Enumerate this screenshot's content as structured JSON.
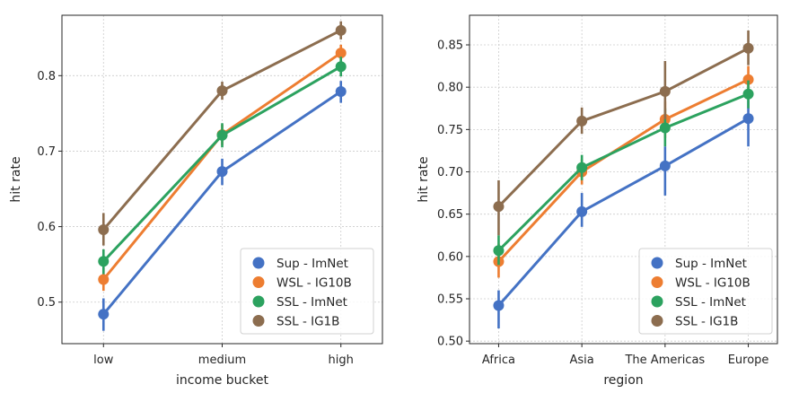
{
  "chart_data": [
    {
      "type": "line",
      "xlabel": "income bucket",
      "ylabel": "hit rate",
      "categories": [
        "low",
        "medium",
        "high"
      ],
      "ylim": [
        0.445,
        0.88
      ],
      "yticks": [
        0.5,
        0.6,
        0.7,
        0.8
      ],
      "ytick_labels": [
        "0.5",
        "0.6",
        "0.7",
        "0.8"
      ],
      "grid": true,
      "legend_loc": "bottom-right",
      "series": [
        {
          "name": "Sup - ImNet",
          "color": "#4472c4",
          "values": [
            0.484,
            0.673,
            0.779
          ],
          "err_low": [
            0.462,
            0.655,
            0.764
          ],
          "err_high": [
            0.505,
            0.69,
            0.793
          ]
        },
        {
          "name": "WSL - IG10B",
          "color": "#ed7d31",
          "values": [
            0.53,
            0.722,
            0.83
          ],
          "err_low": [
            0.515,
            0.708,
            0.819
          ],
          "err_high": [
            0.545,
            0.735,
            0.841
          ]
        },
        {
          "name": "SSL - ImNet",
          "color": "#2ca25f",
          "values": [
            0.554,
            0.721,
            0.812
          ],
          "err_low": [
            0.537,
            0.705,
            0.799
          ],
          "err_high": [
            0.57,
            0.737,
            0.825
          ]
        },
        {
          "name": "SSL - IG1B",
          "color": "#8c6d4f",
          "values": [
            0.596,
            0.78,
            0.86
          ],
          "err_low": [
            0.575,
            0.768,
            0.848
          ],
          "err_high": [
            0.618,
            0.792,
            0.872
          ]
        }
      ]
    },
    {
      "type": "line",
      "xlabel": "region",
      "ylabel": "hit rate",
      "categories": [
        "Africa",
        "Asia",
        "The Americas",
        "Europe"
      ],
      "ylim": [
        0.497,
        0.885
      ],
      "yticks": [
        0.5,
        0.55,
        0.6,
        0.65,
        0.7,
        0.75,
        0.8,
        0.85
      ],
      "ytick_labels": [
        "0.50",
        "0.55",
        "0.60",
        "0.65",
        "0.70",
        "0.75",
        "0.80",
        "0.85"
      ],
      "grid": true,
      "legend_loc": "bottom-right",
      "series": [
        {
          "name": "Sup - ImNet",
          "color": "#4472c4",
          "values": [
            0.542,
            0.653,
            0.707,
            0.763
          ],
          "err_low": [
            0.515,
            0.635,
            0.672,
            0.73
          ],
          "err_high": [
            0.56,
            0.675,
            0.73,
            0.785
          ]
        },
        {
          "name": "WSL - IG10B",
          "color": "#ed7d31",
          "values": [
            0.594,
            0.7,
            0.762,
            0.809
          ],
          "err_low": [
            0.575,
            0.685,
            0.74,
            0.79
          ],
          "err_high": [
            0.615,
            0.715,
            0.783,
            0.825
          ]
        },
        {
          "name": "SSL - ImNet",
          "color": "#2ca25f",
          "values": [
            0.607,
            0.705,
            0.752,
            0.792
          ],
          "err_low": [
            0.59,
            0.69,
            0.73,
            0.775
          ],
          "err_high": [
            0.625,
            0.72,
            0.775,
            0.808
          ]
        },
        {
          "name": "SSL - IG1B",
          "color": "#8c6d4f",
          "values": [
            0.659,
            0.76,
            0.795,
            0.846
          ],
          "err_low": [
            0.625,
            0.745,
            0.762,
            0.826
          ],
          "err_high": [
            0.69,
            0.776,
            0.831,
            0.867
          ]
        }
      ]
    }
  ]
}
